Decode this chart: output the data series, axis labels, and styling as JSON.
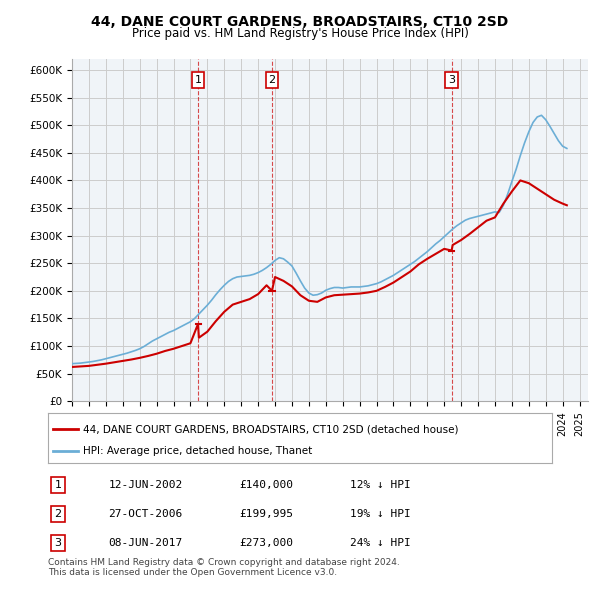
{
  "title": "44, DANE COURT GARDENS, BROADSTAIRS, CT10 2SD",
  "subtitle": "Price paid vs. HM Land Registry's House Price Index (HPI)",
  "ylabel_ticks": [
    "£0",
    "£50K",
    "£100K",
    "£150K",
    "£200K",
    "£250K",
    "£300K",
    "£350K",
    "£400K",
    "£450K",
    "£500K",
    "£550K",
    "£600K"
  ],
  "ytick_vals": [
    0,
    50000,
    100000,
    150000,
    200000,
    250000,
    300000,
    350000,
    400000,
    450000,
    500000,
    550000,
    600000
  ],
  "ylim": [
    0,
    620000
  ],
  "xlim_start": 1995.0,
  "xlim_end": 2025.5,
  "transactions": [
    {
      "num": 1,
      "date_str": "12-JUN-2002",
      "year": 2002.45,
      "price": 140000,
      "pct": "12%",
      "dir": "↓"
    },
    {
      "num": 2,
      "date_str": "27-OCT-2006",
      "year": 2006.82,
      "price": 199995,
      "pct": "19%",
      "dir": "↓"
    },
    {
      "num": 3,
      "date_str": "08-JUN-2017",
      "year": 2017.44,
      "price": 273000,
      "pct": "24%",
      "dir": "↓"
    }
  ],
  "hpi_color": "#6baed6",
  "price_color": "#cc0000",
  "vline_color": "#cc0000",
  "grid_color": "#cccccc",
  "background_color": "#f0f4f8",
  "legend_box_color": "#ffffff",
  "legend_label_price": "44, DANE COURT GARDENS, BROADSTAIRS, CT10 2SD (detached house)",
  "legend_label_hpi": "HPI: Average price, detached house, Thanet",
  "footer": "Contains HM Land Registry data © Crown copyright and database right 2024.\nThis data is licensed under the Open Government Licence v3.0.",
  "hpi_data_x": [
    1995.0,
    1995.25,
    1995.5,
    1995.75,
    1996.0,
    1996.25,
    1996.5,
    1996.75,
    1997.0,
    1997.25,
    1997.5,
    1997.75,
    1998.0,
    1998.25,
    1998.5,
    1998.75,
    1999.0,
    1999.25,
    1999.5,
    1999.75,
    2000.0,
    2000.25,
    2000.5,
    2000.75,
    2001.0,
    2001.25,
    2001.5,
    2001.75,
    2002.0,
    2002.25,
    2002.5,
    2002.75,
    2003.0,
    2003.25,
    2003.5,
    2003.75,
    2004.0,
    2004.25,
    2004.5,
    2004.75,
    2005.0,
    2005.25,
    2005.5,
    2005.75,
    2006.0,
    2006.25,
    2006.5,
    2006.75,
    2007.0,
    2007.25,
    2007.5,
    2007.75,
    2008.0,
    2008.25,
    2008.5,
    2008.75,
    2009.0,
    2009.25,
    2009.5,
    2009.75,
    2010.0,
    2010.25,
    2010.5,
    2010.75,
    2011.0,
    2011.25,
    2011.5,
    2011.75,
    2012.0,
    2012.25,
    2012.5,
    2012.75,
    2013.0,
    2013.25,
    2013.5,
    2013.75,
    2014.0,
    2014.25,
    2014.5,
    2014.75,
    2015.0,
    2015.25,
    2015.5,
    2015.75,
    2016.0,
    2016.25,
    2016.5,
    2016.75,
    2017.0,
    2017.25,
    2017.5,
    2017.75,
    2018.0,
    2018.25,
    2018.5,
    2018.75,
    2019.0,
    2019.25,
    2019.5,
    2019.75,
    2020.0,
    2020.25,
    2020.5,
    2020.75,
    2021.0,
    2021.25,
    2021.5,
    2021.75,
    2022.0,
    2022.25,
    2022.5,
    2022.75,
    2023.0,
    2023.25,
    2023.5,
    2023.75,
    2024.0,
    2024.25
  ],
  "hpi_data_y": [
    68000,
    68500,
    69000,
    70000,
    71000,
    72000,
    73500,
    75000,
    77000,
    79000,
    81000,
    83000,
    85000,
    87000,
    89500,
    92000,
    95000,
    99000,
    104000,
    109000,
    113000,
    117000,
    121000,
    125000,
    128000,
    132000,
    136000,
    140000,
    144000,
    150000,
    158000,
    166000,
    174000,
    183000,
    193000,
    202000,
    210000,
    217000,
    222000,
    225000,
    226000,
    227000,
    228000,
    230000,
    233000,
    237000,
    242000,
    248000,
    255000,
    260000,
    258000,
    252000,
    245000,
    232000,
    218000,
    205000,
    196000,
    192000,
    193000,
    196000,
    201000,
    204000,
    206000,
    206000,
    205000,
    206000,
    207000,
    207000,
    207000,
    208000,
    209000,
    211000,
    213000,
    216000,
    220000,
    224000,
    228000,
    233000,
    238000,
    243000,
    248000,
    253000,
    259000,
    265000,
    271000,
    278000,
    285000,
    291000,
    298000,
    305000,
    312000,
    318000,
    323000,
    328000,
    331000,
    333000,
    335000,
    337000,
    339000,
    341000,
    343000,
    342000,
    355000,
    375000,
    398000,
    420000,
    445000,
    468000,
    488000,
    505000,
    515000,
    518000,
    510000,
    498000,
    485000,
    472000,
    462000,
    458000
  ],
  "price_data_x": [
    1995.0,
    1995.5,
    1996.0,
    1996.5,
    1997.0,
    1997.5,
    1998.0,
    1998.5,
    1999.0,
    1999.5,
    2000.0,
    2000.5,
    2001.0,
    2001.5,
    2002.0,
    2002.45,
    2002.5,
    2003.0,
    2003.5,
    2004.0,
    2004.5,
    2005.0,
    2005.5,
    2006.0,
    2006.5,
    2006.82,
    2007.0,
    2007.5,
    2008.0,
    2008.5,
    2009.0,
    2009.5,
    2010.0,
    2010.5,
    2011.0,
    2011.5,
    2012.0,
    2012.5,
    2013.0,
    2013.5,
    2014.0,
    2014.5,
    2015.0,
    2015.5,
    2016.0,
    2016.5,
    2017.0,
    2017.44,
    2017.5,
    2018.0,
    2018.5,
    2019.0,
    2019.5,
    2020.0,
    2020.5,
    2021.0,
    2021.5,
    2022.0,
    2022.5,
    2023.0,
    2023.5,
    2024.0,
    2024.25
  ],
  "price_data_y": [
    62000,
    63000,
    64000,
    66000,
    68000,
    70500,
    73000,
    75500,
    78500,
    82000,
    86000,
    91000,
    95000,
    100000,
    105000,
    140000,
    115000,
    126000,
    145000,
    162000,
    175000,
    180000,
    185000,
    194000,
    210000,
    199995,
    225000,
    218000,
    208000,
    192000,
    182000,
    180000,
    188000,
    192000,
    193000,
    194000,
    195000,
    197000,
    200000,
    207000,
    215000,
    225000,
    235000,
    248000,
    258000,
    267000,
    276000,
    273000,
    283000,
    292000,
    303000,
    315000,
    327000,
    333000,
    358000,
    380000,
    400000,
    395000,
    385000,
    375000,
    365000,
    358000,
    355000
  ]
}
